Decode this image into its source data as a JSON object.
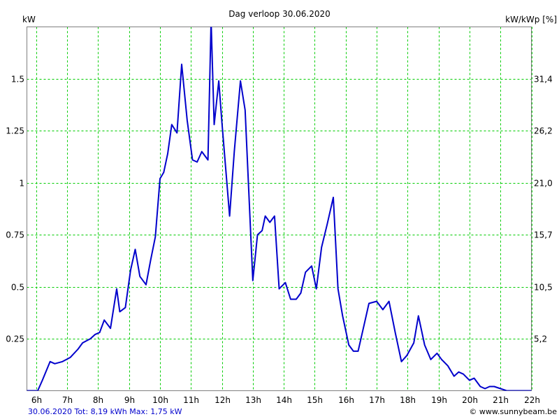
{
  "chart_data": {
    "type": "line",
    "title": "Dag  verloop 30.06.2020",
    "ylabel_left": "kW",
    "ylabel_right": "kW/kWp [%]",
    "x_ticks": [
      "6h",
      "7h",
      "8h",
      "9h",
      "10h",
      "11h",
      "12h",
      "13h",
      "14h",
      "15h",
      "16h",
      "17h",
      "18h",
      "19h",
      "20h",
      "21h",
      "22h"
    ],
    "xlim": [
      5.7,
      22.0
    ],
    "ylim": [
      0,
      1.75
    ],
    "y_ticks_left": [
      "0.25",
      "0.5",
      "0.75",
      "1",
      "1.25",
      "1.5"
    ],
    "y_ticks_left_values": [
      0.25,
      0.5,
      0.75,
      1.0,
      1.25,
      1.5
    ],
    "y_ticks_right": [
      "5,2",
      "10,5",
      "15,7",
      "21,0",
      "26,2",
      "31,4"
    ],
    "grid": true,
    "series": [
      {
        "color": "#0000cc",
        "x": [
          5.7,
          6.05,
          6.2,
          6.45,
          6.6,
          6.85,
          7.1,
          7.35,
          7.5,
          7.75,
          7.9,
          8.05,
          8.2,
          8.4,
          8.6,
          8.7,
          8.88,
          9.05,
          9.2,
          9.35,
          9.55,
          9.7,
          9.85,
          10.0,
          10.12,
          10.25,
          10.38,
          10.55,
          10.7,
          10.88,
          11.05,
          11.2,
          11.35,
          11.55,
          11.65,
          11.75,
          11.9,
          12.0,
          12.25,
          12.4,
          12.6,
          12.75,
          13.0,
          13.15,
          13.3,
          13.4,
          13.55,
          13.7,
          13.85,
          14.05,
          14.22,
          14.4,
          14.55,
          14.7,
          14.9,
          15.05,
          15.22,
          15.4,
          15.6,
          15.75,
          15.9,
          16.1,
          16.25,
          16.4,
          16.6,
          16.75,
          17.0,
          17.2,
          17.4,
          17.6,
          17.8,
          17.98,
          18.2,
          18.35,
          18.55,
          18.75,
          18.95,
          19.1,
          19.3,
          19.5,
          19.65,
          19.8,
          20.0,
          20.15,
          20.35,
          20.5,
          20.65,
          20.8,
          21.0,
          21.2,
          21.4,
          21.55,
          21.75,
          22.0
        ],
        "y": [
          0.0,
          0.0,
          0.05,
          0.14,
          0.13,
          0.14,
          0.16,
          0.2,
          0.23,
          0.25,
          0.27,
          0.28,
          0.34,
          0.3,
          0.49,
          0.38,
          0.4,
          0.58,
          0.68,
          0.55,
          0.51,
          0.63,
          0.74,
          1.02,
          1.05,
          1.14,
          1.28,
          1.24,
          1.57,
          1.3,
          1.11,
          1.1,
          1.15,
          1.11,
          1.78,
          1.28,
          1.49,
          1.29,
          0.84,
          1.15,
          1.49,
          1.35,
          0.53,
          0.75,
          0.77,
          0.84,
          0.81,
          0.84,
          0.49,
          0.52,
          0.44,
          0.44,
          0.47,
          0.57,
          0.6,
          0.49,
          0.69,
          0.8,
          0.93,
          0.49,
          0.36,
          0.22,
          0.19,
          0.19,
          0.32,
          0.42,
          0.43,
          0.39,
          0.43,
          0.28,
          0.14,
          0.17,
          0.23,
          0.36,
          0.22,
          0.15,
          0.18,
          0.15,
          0.12,
          0.07,
          0.09,
          0.08,
          0.05,
          0.06,
          0.02,
          0.01,
          0.02,
          0.02,
          0.01,
          0.0,
          0.0,
          0.0,
          0.0,
          0.0
        ]
      }
    ]
  },
  "footer": {
    "left": "30.06.2020 Tot: 8,19 kWh Max: 1,75 kW",
    "right": "© www.sunnybeam.be"
  }
}
